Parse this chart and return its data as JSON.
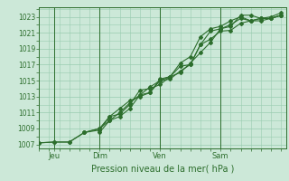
{
  "title": "Pression niveau de la mer( hPa )",
  "ylabel_values": [
    1007,
    1009,
    1011,
    1013,
    1015,
    1017,
    1019,
    1021,
    1023
  ],
  "ylim": [
    1006.5,
    1024.2
  ],
  "xlim": [
    0,
    98
  ],
  "xtick_positions": [
    6,
    24,
    48,
    72
  ],
  "xtick_labels": [
    "Jeu",
    "Dim",
    "Ven",
    "Sam"
  ],
  "vlines": [
    6,
    24,
    48,
    72
  ],
  "background_color": "#cce8d8",
  "grid_color": "#99ccb0",
  "line_color": "#2d6e2d",
  "marker": "D",
  "markersize": 2.0,
  "linewidth": 0.8,
  "lines": [
    {
      "x": [
        0,
        6,
        12,
        18,
        24,
        28,
        32,
        36,
        40,
        44,
        48,
        52,
        56,
        60,
        64,
        68,
        72,
        76,
        80,
        84,
        88,
        92,
        96
      ],
      "y": [
        1007.2,
        1007.3,
        1007.3,
        1008.5,
        1009.0,
        1010.5,
        1011.5,
        1012.5,
        1013.0,
        1013.5,
        1015.2,
        1015.5,
        1016.0,
        1017.2,
        1018.5,
        1019.8,
        1021.5,
        1021.8,
        1023.2,
        1023.2,
        1022.8,
        1022.8,
        1023.2
      ]
    },
    {
      "x": [
        0,
        6,
        12,
        18,
        24,
        28,
        32,
        36,
        40,
        44,
        48,
        52,
        56,
        60,
        64,
        68,
        72,
        76,
        80,
        84,
        88,
        92,
        96
      ],
      "y": [
        1007.2,
        1007.3,
        1007.3,
        1008.5,
        1009.0,
        1010.0,
        1011.0,
        1012.2,
        1013.2,
        1013.5,
        1015.0,
        1015.2,
        1016.2,
        1017.0,
        1019.5,
        1020.2,
        1021.2,
        1021.3,
        1022.2,
        1022.5,
        1022.8,
        1022.8,
        1023.2
      ]
    },
    {
      "x": [
        18,
        24,
        28,
        32,
        36,
        40,
        44,
        48,
        52,
        56,
        60,
        64,
        68,
        72,
        76,
        80,
        84,
        88,
        92,
        96
      ],
      "y": [
        1008.5,
        1008.8,
        1010.5,
        1010.8,
        1012.0,
        1013.8,
        1014.0,
        1014.5,
        1015.5,
        1016.8,
        1017.0,
        1019.5,
        1021.2,
        1021.5,
        1022.0,
        1022.8,
        1022.5,
        1022.5,
        1022.8,
        1023.2
      ]
    },
    {
      "x": [
        24,
        28,
        32,
        36,
        40,
        44,
        48,
        52,
        56,
        60,
        64,
        68,
        72,
        76,
        80,
        84,
        88,
        92,
        96
      ],
      "y": [
        1008.5,
        1010.0,
        1010.5,
        1011.5,
        1013.2,
        1014.2,
        1015.0,
        1015.5,
        1017.2,
        1018.0,
        1020.5,
        1021.5,
        1021.8,
        1022.5,
        1023.0,
        1022.5,
        1022.8,
        1023.0,
        1023.5
      ]
    }
  ]
}
